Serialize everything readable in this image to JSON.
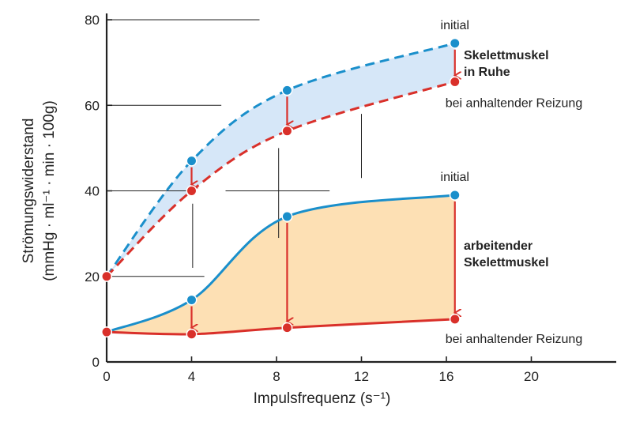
{
  "chart_data": {
    "type": "line",
    "xlabel": "Impulsfrequenz (s⁻¹)",
    "ylabel_line1": "Strömungswiderstand",
    "ylabel_line2": "(mmHg · ml⁻¹ · min · 100g)",
    "xlim": [
      0,
      24
    ],
    "ylim": [
      0,
      80
    ],
    "x_ticks": [
      0,
      4,
      8,
      12,
      16,
      20
    ],
    "y_ticks": [
      0,
      20,
      40,
      60,
      80
    ],
    "panels": [
      {
        "name": "Skelettmuskel in Ruhe",
        "label_lines": [
          "Skelettmuskel",
          "in Ruhe"
        ],
        "fill_color": "#d6e7f8",
        "series": [
          {
            "name": "initial",
            "label": "initial",
            "style": "dashed",
            "color": "#1a8fcb",
            "points": [
              [
                0,
                20
              ],
              [
                4,
                47
              ],
              [
                8.5,
                63.5
              ],
              [
                16.4,
                74.5
              ]
            ]
          },
          {
            "name": "bei anhaltender Reizung",
            "label": "bei anhaltender Reizung",
            "style": "dashed",
            "color": "#d9302a",
            "points": [
              [
                0,
                20
              ],
              [
                4,
                40
              ],
              [
                8.5,
                54
              ],
              [
                16.4,
                65.5
              ]
            ]
          }
        ]
      },
      {
        "name": "arbeitender Skelettmuskel",
        "label_lines": [
          "arbeitender",
          "Skelettmuskel"
        ],
        "fill_color": "#fde0b4",
        "series": [
          {
            "name": "initial",
            "label": "initial",
            "style": "solid",
            "color": "#1a8fcb",
            "points": [
              [
                0,
                7
              ],
              [
                4,
                14.5
              ],
              [
                8.5,
                34
              ],
              [
                16.4,
                39
              ]
            ]
          },
          {
            "name": "bei anhaltender Reizung",
            "label": "bei anhaltender Reizung",
            "style": "solid",
            "color": "#d9302a",
            "points": [
              [
                0,
                7
              ],
              [
                4,
                6.5
              ],
              [
                8.5,
                8
              ],
              [
                16.4,
                10
              ]
            ]
          }
        ]
      }
    ],
    "grid": false,
    "arrow_color": "#d9302a"
  }
}
